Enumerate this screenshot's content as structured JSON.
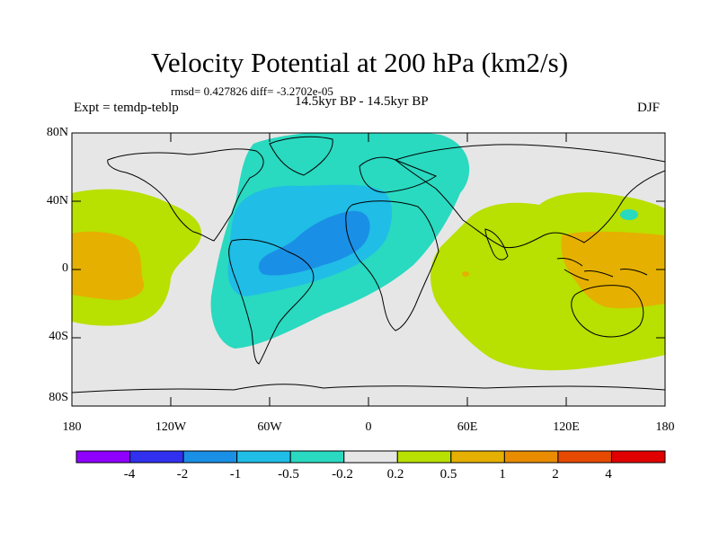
{
  "title": "Velocity Potential at 200 hPa (km2/s)",
  "stats": "rmsd= 0.427826 diff= -3.2702e-05",
  "period": "14.5kyr BP - 14.5kyr BP",
  "experiment": "Expt = temdp-teblp",
  "season": "DJF",
  "axes": {
    "y_labels": [
      "80N",
      "40N",
      "0",
      "40S",
      "80S"
    ],
    "x_labels": [
      "180",
      "120W",
      "60W",
      "0",
      "60E",
      "120E",
      "180"
    ]
  },
  "colorbar": {
    "labels": [
      "-4",
      "-2",
      "-1",
      "-0.5",
      "-0.2",
      "0.2",
      "0.5",
      "1",
      "2",
      "4"
    ],
    "colors": [
      "#8f00ff",
      "#3030ee",
      "#1a8fe6",
      "#20bde6",
      "#29d9c0",
      "#e6e6e6",
      "#b8e000",
      "#e5b000",
      "#e98c00",
      "#e64a00",
      "#e00000"
    ]
  },
  "map_colors": {
    "neutral": "#e6e6e6",
    "neg_0_2": "#29d9c0",
    "neg_0_5": "#20bde6",
    "neg_1": "#1a8fe6",
    "pos_0_2": "#b8e000",
    "pos_0_5": "#e5b000"
  }
}
